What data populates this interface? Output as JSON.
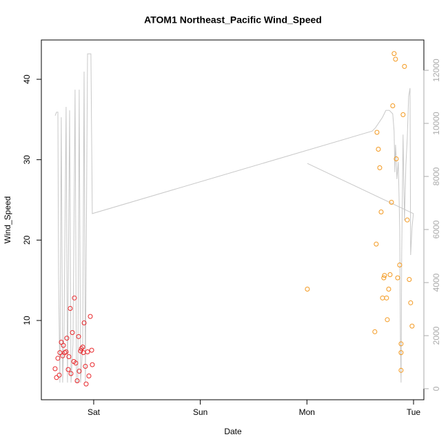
{
  "chart_data": {
    "type": "scatter",
    "title": "ATOM1 Northeast_Pacific Wind_Speed",
    "x_label": "Date",
    "y_label": "Wind_Speed",
    "xlim": [
      0.509,
      4.097
    ],
    "xticks": [
      {
        "value": 1,
        "label": "Sat"
      },
      {
        "value": 2,
        "label": "Sun"
      },
      {
        "value": 3,
        "label": "Mon"
      },
      {
        "value": 4,
        "label": "Tue"
      }
    ],
    "ylim": [
      0.14,
      44.89
    ],
    "yticks": [
      10,
      20,
      30,
      40
    ],
    "y2lim": [
      -416,
      13143
    ],
    "y2ticks": [
      0,
      2000,
      4000,
      6000,
      8000,
      10000,
      12000
    ],
    "y2_color": "#aaaaaa",
    "series": [
      {
        "type": "scatter",
        "color": "#e8262a",
        "x": [
          0.638,
          0.651,
          0.664,
          0.677,
          0.683,
          0.696,
          0.709,
          0.716,
          0.728,
          0.741,
          0.748,
          0.761,
          0.767,
          0.78,
          0.787,
          0.8,
          0.813,
          0.819,
          0.832,
          0.845,
          0.858,
          0.864,
          0.877,
          0.884,
          0.897,
          0.903,
          0.91,
          0.922,
          0.929,
          0.942,
          0.955,
          0.968,
          0.981,
          0.987
        ],
        "values": [
          4.0,
          2.9,
          5.3,
          3.2,
          6.0,
          7.3,
          5.6,
          6.9,
          6.0,
          6.1,
          7.8,
          3.9,
          5.5,
          11.5,
          3.4,
          8.5,
          4.9,
          12.8,
          4.7,
          2.5,
          8.0,
          3.7,
          6.2,
          6.5,
          6.7,
          6.0,
          9.7,
          4.3,
          2.1,
          6.1,
          3.1,
          10.5,
          6.3,
          4.5
        ]
      },
      {
        "type": "scatter",
        "color": "#f3981d",
        "x": [
          3.004,
          3.637,
          3.65,
          3.657,
          3.67,
          3.683,
          3.696,
          3.709,
          3.721,
          3.728,
          3.747,
          3.754,
          3.767,
          3.78,
          3.793,
          3.805,
          3.818,
          3.831,
          3.838,
          3.851,
          3.87,
          3.883,
          3.883,
          3.883,
          3.902,
          3.915,
          3.941,
          3.96,
          3.973,
          3.986
        ],
        "values": [
          13.9,
          8.6,
          19.5,
          33.4,
          31.3,
          29.0,
          23.5,
          12.8,
          15.3,
          15.6,
          12.8,
          10.1,
          13.9,
          15.7,
          24.7,
          36.7,
          43.2,
          42.5,
          30.1,
          15.3,
          16.9,
          7.1,
          6.0,
          3.8,
          35.6,
          41.6,
          22.5,
          15.1,
          12.2,
          9.3
        ]
      },
      {
        "type": "line",
        "axis": "y2",
        "color": "#c8c8c8",
        "x": [
          0.638,
          0.651,
          0.664,
          0.67,
          0.683,
          0.696,
          0.709,
          0.722,
          0.741,
          0.754,
          0.774,
          0.787,
          0.806,
          0.825,
          0.838,
          0.851,
          0.864,
          0.877,
          0.897,
          0.91,
          0.922,
          0.942,
          0.961,
          0.974,
          0.987,
          3.612,
          3.644,
          3.709,
          3.741,
          3.773,
          3.805,
          3.818,
          3.825,
          3.831,
          3.838,
          3.844,
          3.857,
          3.87,
          3.877,
          3.883,
          3.889,
          3.902,
          3.915,
          3.928,
          3.941,
          3.954,
          3.967,
          3.973,
          3.986,
          3.999,
          3.004
        ],
        "values": [
          10290,
          10420,
          10420,
          4260,
          230,
          10230,
          230,
          2180,
          10620,
          230,
          10490,
          230,
          1660,
          11270,
          230,
          230,
          11270,
          230,
          1660,
          11950,
          230,
          12620,
          12620,
          12620,
          6600,
          9710,
          9840,
          10230,
          10490,
          10490,
          10360,
          9710,
          8160,
          9190,
          8680,
          7900,
          8550,
          6080,
          1660,
          230,
          5040,
          9580,
          6340,
          8420,
          9450,
          11010,
          11330,
          5040,
          6080,
          6600,
          8490
        ]
      }
    ]
  }
}
